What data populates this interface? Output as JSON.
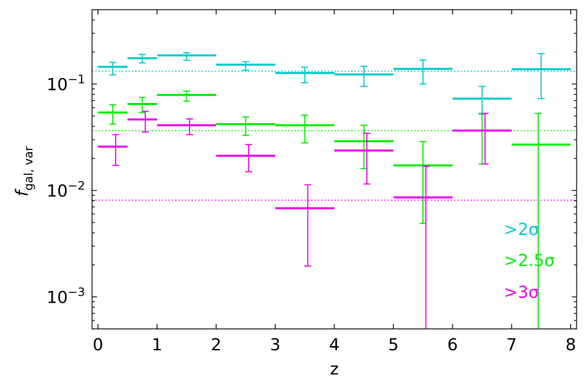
{
  "chart_data": {
    "type": "scatter",
    "xlabel": "z",
    "ylabel_main": "f",
    "ylabel_sub": "gal, var",
    "xlim": [
      -0.1,
      8.1
    ],
    "ylim": [
      0.0005,
      0.5
    ],
    "yscale": "log",
    "grid": false,
    "legend_placement": "bottom-right",
    "x_ticks": [
      {
        "value": 0,
        "label": "0"
      },
      {
        "value": 1,
        "label": "1"
      },
      {
        "value": 2,
        "label": "2"
      },
      {
        "value": 3,
        "label": "3"
      },
      {
        "value": 4,
        "label": "4"
      },
      {
        "value": 5,
        "label": "5"
      },
      {
        "value": 6,
        "label": "6"
      },
      {
        "value": 7,
        "label": "7"
      },
      {
        "value": 8,
        "label": "8"
      }
    ],
    "y_ticks": [
      {
        "value": 0.001,
        "base": "10",
        "exp": "−3"
      },
      {
        "value": 0.01,
        "base": "10",
        "exp": "−2"
      },
      {
        "value": 0.1,
        "base": "10",
        "exp": "−1"
      }
    ],
    "series": [
      {
        "name": ">2σ",
        "color": "#00cccc",
        "reference": 0.132,
        "bins": [
          {
            "x0": 0.0,
            "x1": 0.5,
            "y": 0.145,
            "err_x": 0.25,
            "err_lo": 0.122,
            "err_hi": 0.16
          },
          {
            "x0": 0.5,
            "x1": 1.0,
            "y": 0.175,
            "err_x": 0.75,
            "err_lo": 0.158,
            "err_hi": 0.19
          },
          {
            "x0": 1.0,
            "x1": 2.0,
            "y": 0.186,
            "err_x": 1.5,
            "err_lo": 0.167,
            "err_hi": 0.197
          },
          {
            "x0": 2.0,
            "x1": 3.0,
            "y": 0.152,
            "err_x": 2.5,
            "err_lo": 0.135,
            "err_hi": 0.162
          },
          {
            "x0": 3.0,
            "x1": 4.0,
            "y": 0.127,
            "err_x": 3.5,
            "err_lo": 0.103,
            "err_hi": 0.144
          },
          {
            "x0": 4.0,
            "x1": 5.0,
            "y": 0.123,
            "err_x": 4.5,
            "err_lo": 0.095,
            "err_hi": 0.147
          },
          {
            "x0": 5.0,
            "x1": 6.0,
            "y": 0.139,
            "err_x": 5.5,
            "err_lo": 0.1,
            "err_hi": 0.168
          },
          {
            "x0": 6.0,
            "x1": 7.0,
            "y": 0.073,
            "err_x": 6.5,
            "err_lo": 0.052,
            "err_hi": 0.095
          },
          {
            "x0": 7.0,
            "x1": 8.0,
            "y": 0.138,
            "err_x": 7.5,
            "err_lo": 0.073,
            "err_hi": 0.193
          }
        ]
      },
      {
        "name": ">2.5σ",
        "color": "#00ee00",
        "reference": 0.0365,
        "bins": [
          {
            "x0": 0.0,
            "x1": 0.5,
            "y": 0.054,
            "err_x": 0.25,
            "err_lo": 0.042,
            "err_hi": 0.064
          },
          {
            "x0": 0.5,
            "x1": 1.0,
            "y": 0.065,
            "err_x": 0.75,
            "err_lo": 0.054,
            "err_hi": 0.075
          },
          {
            "x0": 1.0,
            "x1": 2.0,
            "y": 0.079,
            "err_x": 1.5,
            "err_lo": 0.069,
            "err_hi": 0.086
          },
          {
            "x0": 2.0,
            "x1": 3.0,
            "y": 0.042,
            "err_x": 2.5,
            "err_lo": 0.033,
            "err_hi": 0.049
          },
          {
            "x0": 3.0,
            "x1": 4.0,
            "y": 0.041,
            "err_x": 3.5,
            "err_lo": 0.028,
            "err_hi": 0.051
          },
          {
            "x0": 4.0,
            "x1": 5.0,
            "y": 0.029,
            "err_x": 4.5,
            "err_lo": 0.016,
            "err_hi": 0.041
          },
          {
            "x0": 5.0,
            "x1": 6.0,
            "y": 0.0172,
            "err_x": 5.5,
            "err_lo": 0.0049,
            "err_hi": 0.0288
          },
          {
            "x0": 6.0,
            "x1": 7.0,
            "y": 0.0365,
            "err_x": 6.5,
            "err_lo": 0.0177,
            "err_hi": 0.053
          },
          {
            "x0": 7.0,
            "x1": 8.0,
            "y": 0.027,
            "err_x": 7.45,
            "err_lo": 0.0004,
            "err_hi": 0.053
          }
        ]
      },
      {
        "name": ">3σ",
        "color": "#ee00ee",
        "reference": 0.0081,
        "bins": [
          {
            "x0": 0.0,
            "x1": 0.5,
            "y": 0.0258,
            "err_x": 0.3,
            "err_lo": 0.0172,
            "err_hi": 0.0335
          },
          {
            "x0": 0.5,
            "x1": 1.0,
            "y": 0.0465,
            "err_x": 0.8,
            "err_lo": 0.0355,
            "err_hi": 0.0555
          },
          {
            "x0": 1.0,
            "x1": 2.0,
            "y": 0.041,
            "err_x": 1.55,
            "err_lo": 0.0335,
            "err_hi": 0.047
          },
          {
            "x0": 2.0,
            "x1": 3.0,
            "y": 0.0212,
            "err_x": 2.55,
            "err_lo": 0.015,
            "err_hi": 0.027
          },
          {
            "x0": 3.0,
            "x1": 4.0,
            "y": 0.0068,
            "err_x": 3.55,
            "err_lo": 0.00195,
            "err_hi": 0.0113
          },
          {
            "x0": 4.0,
            "x1": 5.0,
            "y": 0.0237,
            "err_x": 4.55,
            "err_lo": 0.0115,
            "err_hi": 0.0345
          },
          {
            "x0": 5.0,
            "x1": 6.0,
            "y": 0.0086,
            "err_x": 5.55,
            "err_lo": 0.0004,
            "err_hi": 0.0168
          },
          {
            "x0": 6.0,
            "x1": 7.0,
            "y": 0.0365,
            "err_x": 6.55,
            "err_lo": 0.0177,
            "err_hi": 0.053
          }
        ]
      }
    ]
  }
}
